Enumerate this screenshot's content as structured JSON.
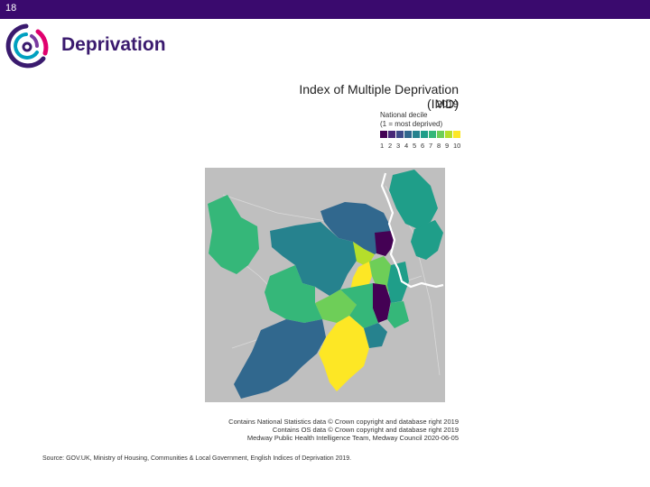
{
  "slide": {
    "number": "18",
    "title": "Deprivation"
  },
  "map": {
    "title": "Index of Multiple Deprivation (IMD)",
    "year": "2019",
    "legend": {
      "title_line1": "National decile",
      "title_line2": "(1 = most deprived)",
      "labels": [
        "1",
        "2",
        "3",
        "4",
        "5",
        "6",
        "7",
        "8",
        "9",
        "10"
      ],
      "colors": [
        "#440154",
        "#482878",
        "#3e4a89",
        "#31688e",
        "#26828e",
        "#1f9e89",
        "#35b779",
        "#6ece58",
        "#b5de2b",
        "#fde725"
      ]
    },
    "background_color": "#bfbfbf"
  },
  "attribution": {
    "line1": "Contains National Statistics data © Crown copyright and database right 2019",
    "line2": "Contains OS data © Crown copyright and database right 2019",
    "line3": "Medway Public Health Intelligence Team, Medway Council 2020-06-05"
  },
  "source": "Source: GOV.UK, Ministry of Housing, Communities & Local Government, English Indices of Deprivation 2019."
}
